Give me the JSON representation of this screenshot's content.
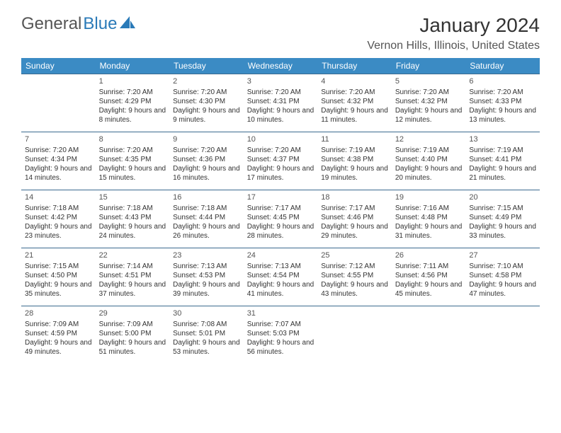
{
  "brand": {
    "part1": "General",
    "part2": "Blue"
  },
  "title": "January 2024",
  "location": "Vernon Hills, Illinois, United States",
  "header_bg": "#3b8bc4",
  "border_color": "#3b6a8f",
  "weekdays": [
    "Sunday",
    "Monday",
    "Tuesday",
    "Wednesday",
    "Thursday",
    "Friday",
    "Saturday"
  ],
  "weeks": [
    [
      null,
      {
        "n": "1",
        "sr": "7:20 AM",
        "ss": "4:29 PM",
        "dl": "9 hours and 8 minutes."
      },
      {
        "n": "2",
        "sr": "7:20 AM",
        "ss": "4:30 PM",
        "dl": "9 hours and 9 minutes."
      },
      {
        "n": "3",
        "sr": "7:20 AM",
        "ss": "4:31 PM",
        "dl": "9 hours and 10 minutes."
      },
      {
        "n": "4",
        "sr": "7:20 AM",
        "ss": "4:32 PM",
        "dl": "9 hours and 11 minutes."
      },
      {
        "n": "5",
        "sr": "7:20 AM",
        "ss": "4:32 PM",
        "dl": "9 hours and 12 minutes."
      },
      {
        "n": "6",
        "sr": "7:20 AM",
        "ss": "4:33 PM",
        "dl": "9 hours and 13 minutes."
      }
    ],
    [
      {
        "n": "7",
        "sr": "7:20 AM",
        "ss": "4:34 PM",
        "dl": "9 hours and 14 minutes."
      },
      {
        "n": "8",
        "sr": "7:20 AM",
        "ss": "4:35 PM",
        "dl": "9 hours and 15 minutes."
      },
      {
        "n": "9",
        "sr": "7:20 AM",
        "ss": "4:36 PM",
        "dl": "9 hours and 16 minutes."
      },
      {
        "n": "10",
        "sr": "7:20 AM",
        "ss": "4:37 PM",
        "dl": "9 hours and 17 minutes."
      },
      {
        "n": "11",
        "sr": "7:19 AM",
        "ss": "4:38 PM",
        "dl": "9 hours and 19 minutes."
      },
      {
        "n": "12",
        "sr": "7:19 AM",
        "ss": "4:40 PM",
        "dl": "9 hours and 20 minutes."
      },
      {
        "n": "13",
        "sr": "7:19 AM",
        "ss": "4:41 PM",
        "dl": "9 hours and 21 minutes."
      }
    ],
    [
      {
        "n": "14",
        "sr": "7:18 AM",
        "ss": "4:42 PM",
        "dl": "9 hours and 23 minutes."
      },
      {
        "n": "15",
        "sr": "7:18 AM",
        "ss": "4:43 PM",
        "dl": "9 hours and 24 minutes."
      },
      {
        "n": "16",
        "sr": "7:18 AM",
        "ss": "4:44 PM",
        "dl": "9 hours and 26 minutes."
      },
      {
        "n": "17",
        "sr": "7:17 AM",
        "ss": "4:45 PM",
        "dl": "9 hours and 28 minutes."
      },
      {
        "n": "18",
        "sr": "7:17 AM",
        "ss": "4:46 PM",
        "dl": "9 hours and 29 minutes."
      },
      {
        "n": "19",
        "sr": "7:16 AM",
        "ss": "4:48 PM",
        "dl": "9 hours and 31 minutes."
      },
      {
        "n": "20",
        "sr": "7:15 AM",
        "ss": "4:49 PM",
        "dl": "9 hours and 33 minutes."
      }
    ],
    [
      {
        "n": "21",
        "sr": "7:15 AM",
        "ss": "4:50 PM",
        "dl": "9 hours and 35 minutes."
      },
      {
        "n": "22",
        "sr": "7:14 AM",
        "ss": "4:51 PM",
        "dl": "9 hours and 37 minutes."
      },
      {
        "n": "23",
        "sr": "7:13 AM",
        "ss": "4:53 PM",
        "dl": "9 hours and 39 minutes."
      },
      {
        "n": "24",
        "sr": "7:13 AM",
        "ss": "4:54 PM",
        "dl": "9 hours and 41 minutes."
      },
      {
        "n": "25",
        "sr": "7:12 AM",
        "ss": "4:55 PM",
        "dl": "9 hours and 43 minutes."
      },
      {
        "n": "26",
        "sr": "7:11 AM",
        "ss": "4:56 PM",
        "dl": "9 hours and 45 minutes."
      },
      {
        "n": "27",
        "sr": "7:10 AM",
        "ss": "4:58 PM",
        "dl": "9 hours and 47 minutes."
      }
    ],
    [
      {
        "n": "28",
        "sr": "7:09 AM",
        "ss": "4:59 PM",
        "dl": "9 hours and 49 minutes."
      },
      {
        "n": "29",
        "sr": "7:09 AM",
        "ss": "5:00 PM",
        "dl": "9 hours and 51 minutes."
      },
      {
        "n": "30",
        "sr": "7:08 AM",
        "ss": "5:01 PM",
        "dl": "9 hours and 53 minutes."
      },
      {
        "n": "31",
        "sr": "7:07 AM",
        "ss": "5:03 PM",
        "dl": "9 hours and 56 minutes."
      },
      null,
      null,
      null
    ]
  ],
  "labels": {
    "sunrise": "Sunrise:",
    "sunset": "Sunset:",
    "daylight": "Daylight:"
  }
}
